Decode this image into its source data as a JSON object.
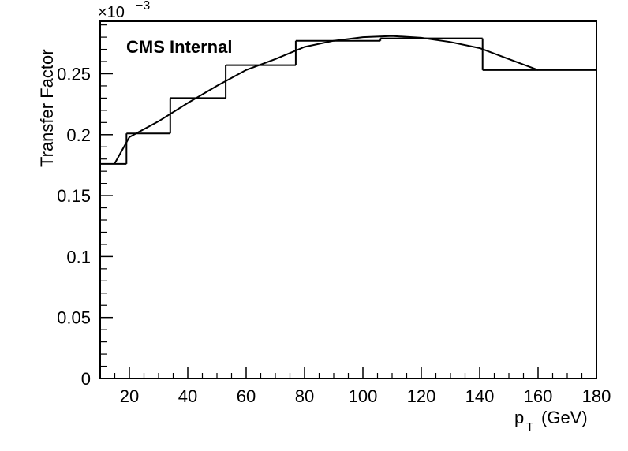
{
  "chart_data": {
    "type": "line",
    "title": "",
    "annotation": "CMS Internal",
    "xlabel_main": "p",
    "xlabel_sub": "T",
    "xlabel_unit": "(GeV)",
    "ylabel": "Transfer Factor",
    "y_multiplier_base": "×10",
    "y_multiplier_exp": "−3",
    "xlim": [
      10,
      180
    ],
    "ylim": [
      0,
      0.293
    ],
    "x_ticks": [
      20,
      40,
      60,
      80,
      100,
      120,
      140,
      160,
      180
    ],
    "y_ticks": [
      0,
      0.05,
      0.1,
      0.15,
      0.2,
      0.25
    ],
    "y_tick_labels": [
      "0",
      "0.05",
      "0.1",
      "0.15",
      "0.2",
      "0.25"
    ],
    "histogram": {
      "name": "transfer factor",
      "bin_edges": [
        10,
        19,
        34,
        53,
        77,
        106,
        141,
        180
      ],
      "values": [
        0.176,
        0.201,
        0.23,
        0.257,
        0.277,
        0.279,
        0.253
      ]
    },
    "fit": {
      "name": "fit",
      "x": [
        15,
        20,
        30,
        40,
        50,
        60,
        70,
        80,
        90,
        100,
        110,
        120,
        130,
        140,
        150,
        160
      ],
      "y": [
        0.1765,
        0.198,
        0.211,
        0.226,
        0.24,
        0.253,
        0.262,
        0.272,
        0.277,
        0.28,
        0.281,
        0.2795,
        0.276,
        0.271,
        0.262,
        0.253
      ]
    },
    "grid": false,
    "legend": "none"
  }
}
